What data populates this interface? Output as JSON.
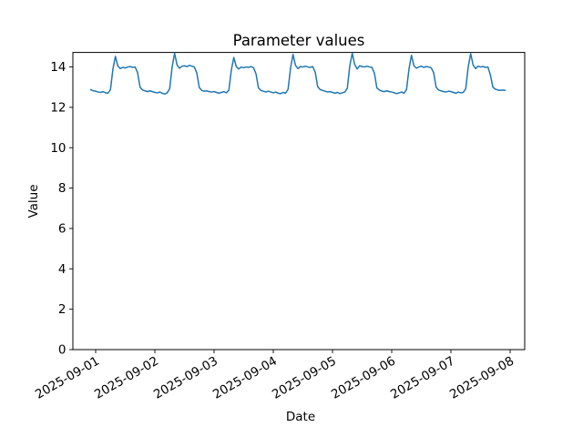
{
  "chart_data": {
    "type": "line",
    "title": "Parameter values",
    "xlabel": "Date",
    "ylabel": "Value",
    "grid": false,
    "legend": "none",
    "background_color": "#ffffff",
    "line_color": "#1f77b4",
    "line_width": 1.5,
    "ylim": [
      0,
      14.72
    ],
    "y_ticks": [
      0,
      2,
      4,
      6,
      8,
      10,
      12,
      14
    ],
    "xlim_hours": [
      -9.23,
      173.9
    ],
    "x_ticks": [
      {
        "hour": 0,
        "label": "2025-09-01"
      },
      {
        "hour": 24,
        "label": "2025-09-02"
      },
      {
        "hour": 48,
        "label": "2025-09-03"
      },
      {
        "hour": 72,
        "label": "2025-09-04"
      },
      {
        "hour": 96,
        "label": "2025-09-05"
      },
      {
        "hour": 120,
        "label": "2025-09-06"
      },
      {
        "hour": 144,
        "label": "2025-09-07"
      },
      {
        "hour": 168,
        "label": "2025-09-08"
      }
    ],
    "x_tick_rotation_deg": 30,
    "series": [
      {
        "name": "parameter",
        "start_hour_offset": -2,
        "interval_hours": 1,
        "values": [
          12.88,
          12.82,
          12.8,
          12.76,
          12.74,
          12.78,
          12.72,
          12.7,
          12.88,
          13.9,
          14.52,
          14.05,
          13.92,
          13.98,
          13.95,
          14.0,
          14.02,
          13.98,
          14.0,
          13.72,
          13.0,
          12.86,
          12.82,
          12.78,
          12.82,
          12.78,
          12.74,
          12.72,
          12.76,
          12.7,
          12.66,
          12.72,
          12.92,
          14.0,
          14.68,
          14.1,
          13.94,
          14.04,
          14.06,
          14.02,
          14.08,
          14.04,
          14.0,
          13.7,
          12.98,
          12.84,
          12.8,
          12.82,
          12.78,
          12.76,
          12.78,
          12.74,
          12.7,
          12.74,
          12.78,
          12.72,
          12.86,
          13.85,
          14.47,
          14.02,
          13.9,
          14.0,
          13.96,
          14.0,
          13.98,
          14.02,
          13.96,
          13.66,
          12.96,
          12.84,
          12.8,
          12.76,
          12.8,
          12.76,
          12.72,
          12.76,
          12.7,
          12.68,
          12.74,
          12.7,
          12.9,
          13.95,
          14.62,
          14.08,
          13.92,
          14.02,
          14.0,
          14.04,
          14.0,
          13.98,
          14.02,
          13.74,
          13.02,
          12.88,
          12.84,
          12.8,
          12.76,
          12.78,
          12.74,
          12.7,
          12.74,
          12.68,
          12.72,
          12.76,
          12.94,
          14.05,
          14.68,
          14.12,
          13.9,
          14.06,
          14.02,
          14.0,
          14.04,
          14.0,
          13.98,
          13.68,
          12.96,
          12.86,
          12.8,
          12.78,
          12.82,
          12.78,
          12.76,
          12.72,
          12.68,
          12.72,
          12.76,
          12.7,
          12.88,
          13.9,
          14.58,
          14.06,
          13.94,
          14.0,
          14.04,
          13.98,
          14.02,
          14.0,
          13.96,
          13.72,
          13.0,
          12.86,
          12.82,
          12.78,
          12.76,
          12.8,
          12.78,
          12.74,
          12.7,
          12.76,
          12.72,
          12.74,
          12.92,
          14.0,
          14.66,
          14.1,
          13.92,
          14.04,
          14.0,
          14.02,
          13.98,
          14.0,
          13.6,
          13.0,
          12.9,
          12.86,
          12.84,
          12.86,
          12.84
        ]
      }
    ]
  }
}
